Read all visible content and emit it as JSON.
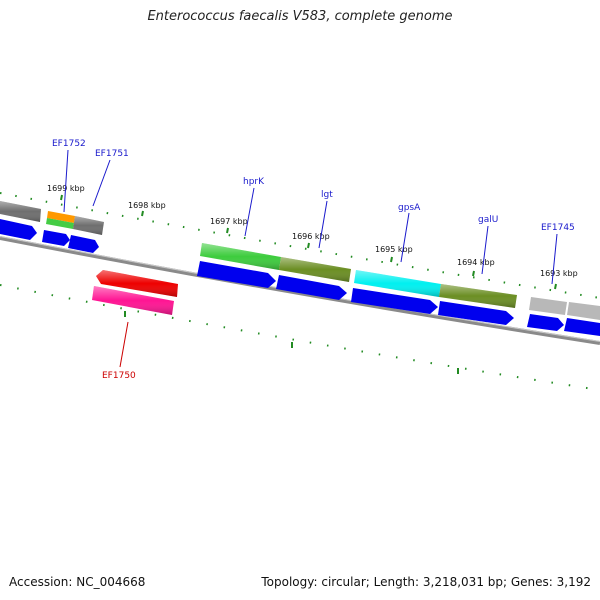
{
  "title": "Enterococcus faecalis V583, complete genome",
  "footer": {
    "accession": "Accession: NC_004668",
    "topology": "Topology: circular; Length: 3,218,031 bp; Genes: 3,192"
  },
  "ticks": [
    "1699 kbp",
    "1698 kbp",
    "1697 kbp",
    "1696 kbp",
    "1695 kbp",
    "1694 kbp",
    "1693 kbp"
  ],
  "genes": {
    "ef1752": "EF1752",
    "ef1751": "EF1751",
    "hprk": "hprK",
    "lgt": "lgt",
    "gpsa": "gpsA",
    "galu": "galU",
    "ef1745": "EF1745",
    "ef1750": "EF1750"
  },
  "colors": {
    "label_plus": "#1a1acc",
    "label_minus": "#cc0000",
    "tick": "#228b22",
    "backbone": "#808080",
    "cds": "#0000ff",
    "gray_feature": "#707070",
    "light_gray_feature": "#b8b8b8",
    "orange_feature": "#ff9900",
    "green_feature": "#44cc44",
    "olive_feature": "#6b8e23",
    "cyan_feature": "#00ffff",
    "red_feature": "#ff0000",
    "pink_feature": "#ff1493"
  }
}
